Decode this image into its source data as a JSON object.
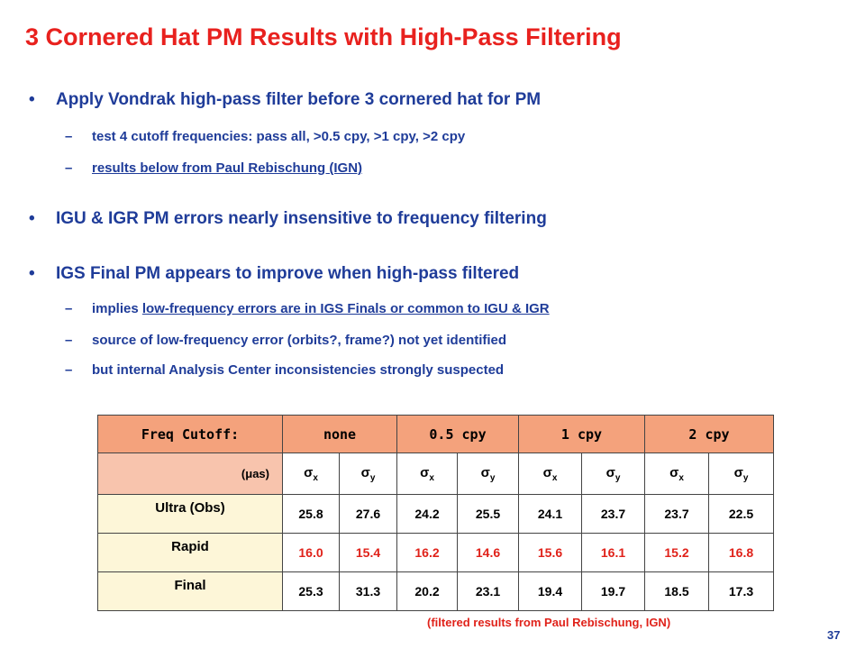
{
  "title": "3 Cornered Hat PM Results with High-Pass Filtering",
  "bullets": [
    {
      "text": "Apply Vondrak high-pass filter before 3 cornered hat for PM",
      "sub": [
        {
          "text": "test 4 cutoff frequencies:  pass all,  >0.5 cpy,  >1 cpy,  >2 cpy"
        },
        {
          "underlined": "results below from Paul Rebischung (IGN)"
        }
      ]
    },
    {
      "text": "IGU & IGR PM errors nearly insensitive to frequency filtering"
    },
    {
      "text": "IGS Final PM appears to improve when high-pass filtered",
      "sub": [
        {
          "text": "implies ",
          "underlined": "low-frequency errors are in IGS Finals or common to IGU & IGR"
        },
        {
          "text": "source of low-frequency error (orbits?, frame?) not yet identified"
        },
        {
          "text": "but internal Analysis Center inconsistencies strongly suspected"
        }
      ]
    }
  ],
  "table": {
    "header": [
      "Freq Cutoff:",
      "none",
      "0.5 cpy",
      "1 cpy",
      "2 cpy"
    ],
    "unit": "(μas)",
    "subheader": [
      {
        "symbol": "σ",
        "sub": "x"
      },
      {
        "symbol": "σ",
        "sub": "y"
      },
      {
        "symbol": "σ",
        "sub": "x"
      },
      {
        "symbol": "σ",
        "sub": "y"
      },
      {
        "symbol": "σ",
        "sub": "x"
      },
      {
        "symbol": "σ",
        "sub": "y"
      },
      {
        "symbol": "σ",
        "sub": "x"
      },
      {
        "symbol": "σ",
        "sub": "y"
      }
    ],
    "rows": [
      {
        "label": "Ultra (Obs)",
        "values": [
          "25.8",
          "27.6",
          "24.2",
          "25.5",
          "24.1",
          "23.7",
          "23.7",
          "22.5"
        ]
      },
      {
        "label": "Rapid",
        "values": [
          "16.0",
          "15.4",
          "16.2",
          "14.6",
          "15.6",
          "16.1",
          "15.2",
          "16.8"
        ],
        "color": "#e0221a"
      },
      {
        "label": "Final",
        "values": [
          "25.3",
          "31.3",
          "20.2",
          "23.1",
          "19.4",
          "19.7",
          "18.5",
          "17.3"
        ]
      }
    ]
  },
  "footnote": "(filtered results from Paul Rebischung, IGN)",
  "page_number": "37"
}
